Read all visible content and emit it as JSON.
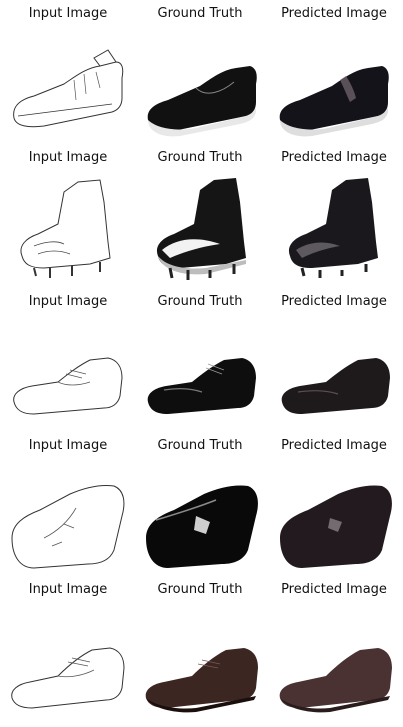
{
  "rows": [
    {
      "captions": [
        "Input Image",
        "Ground Truth",
        "Predicted Image"
      ],
      "images": [
        "sketch-slip-on-sneaker",
        "photo-black-slip-on-sneaker",
        "predicted-black-slip-on-sneaker"
      ]
    },
    {
      "captions": [
        "Input Image",
        "Ground Truth",
        "Predicted Image"
      ],
      "images": [
        "sketch-football-cleat",
        "photo-black-white-cleat",
        "predicted-black-cleat"
      ]
    },
    {
      "captions": [
        "Input Image",
        "Ground Truth",
        "Predicted Image"
      ],
      "images": [
        "sketch-oxford-shoe",
        "photo-black-patent-oxford",
        "predicted-dark-oxford"
      ]
    },
    {
      "captions": [
        "Input Image",
        "Ground Truth",
        "Predicted Image"
      ],
      "images": [
        "sketch-clog",
        "photo-black-patent-clog",
        "predicted-dark-clog"
      ]
    },
    {
      "captions": [
        "Input Image",
        "Ground Truth",
        "Predicted Image"
      ],
      "images": [
        "sketch-derby-shoe",
        "photo-brown-derby",
        "predicted-brown-derby"
      ]
    }
  ]
}
